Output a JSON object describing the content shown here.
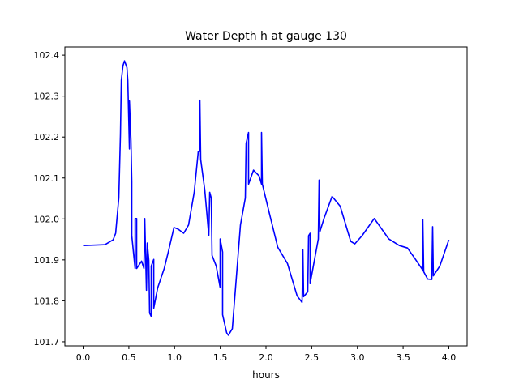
{
  "chart_data": {
    "type": "line",
    "title": "Water Depth h at gauge 130",
    "xlabel": "hours",
    "ylabel": "",
    "xlim": [
      -0.2,
      4.2
    ],
    "ylim": [
      101.69,
      102.42
    ],
    "xticks": [
      0.0,
      0.5,
      1.0,
      1.5,
      2.0,
      2.5,
      3.0,
      3.5,
      4.0
    ],
    "xtick_labels": [
      "0.0",
      "0.5",
      "1.0",
      "1.5",
      "2.0",
      "2.5",
      "3.0",
      "3.5",
      "4.0"
    ],
    "yticks": [
      101.7,
      101.8,
      101.9,
      102.0,
      102.1,
      102.2,
      102.3,
      102.4
    ],
    "ytick_labels": [
      "101.7",
      "101.8",
      "101.9",
      "102.0",
      "102.1",
      "102.2",
      "102.3",
      "102.4"
    ],
    "grid": false,
    "series": [
      {
        "name": "h",
        "color": "#0000ff",
        "points": [
          [
            0.0,
            101.935
          ],
          [
            0.239,
            101.937
          ],
          [
            0.328,
            101.949
          ],
          [
            0.355,
            101.965
          ],
          [
            0.39,
            102.051
          ],
          [
            0.408,
            102.205
          ],
          [
            0.417,
            102.338
          ],
          [
            0.435,
            102.374
          ],
          [
            0.452,
            102.386
          ],
          [
            0.479,
            102.37
          ],
          [
            0.488,
            102.338
          ],
          [
            0.506,
            102.171
          ],
          [
            0.506,
            102.288
          ],
          [
            0.523,
            102.191
          ],
          [
            0.532,
            102.091
          ],
          [
            0.532,
            101.959
          ],
          [
            0.568,
            101.879
          ],
          [
            0.568,
            102.001
          ],
          [
            0.585,
            102.001
          ],
          [
            0.585,
            101.879
          ],
          [
            0.639,
            101.897
          ],
          [
            0.665,
            101.879
          ],
          [
            0.674,
            102.001
          ],
          [
            0.692,
            101.826
          ],
          [
            0.701,
            101.941
          ],
          [
            0.718,
            101.899
          ],
          [
            0.727,
            101.77
          ],
          [
            0.745,
            101.762
          ],
          [
            0.745,
            101.885
          ],
          [
            0.772,
            101.901
          ],
          [
            0.772,
            101.782
          ],
          [
            0.816,
            101.832
          ],
          [
            0.887,
            101.879
          ],
          [
            0.931,
            101.919
          ],
          [
            0.993,
            101.979
          ],
          [
            1.038,
            101.975
          ],
          [
            1.1,
            101.965
          ],
          [
            1.153,
            101.985
          ],
          [
            1.215,
            102.065
          ],
          [
            1.259,
            102.165
          ],
          [
            1.277,
            102.165
          ],
          [
            1.277,
            102.29
          ],
          [
            1.286,
            102.145
          ],
          [
            1.33,
            102.071
          ],
          [
            1.375,
            101.959
          ],
          [
            1.384,
            102.065
          ],
          [
            1.401,
            102.051
          ],
          [
            1.41,
            101.911
          ],
          [
            1.455,
            101.885
          ],
          [
            1.499,
            101.832
          ],
          [
            1.499,
            101.951
          ],
          [
            1.525,
            101.919
          ],
          [
            1.525,
            101.766
          ],
          [
            1.57,
            101.722
          ],
          [
            1.588,
            101.716
          ],
          [
            1.632,
            101.732
          ],
          [
            1.721,
            101.985
          ],
          [
            1.774,
            102.051
          ],
          [
            1.783,
            102.185
          ],
          [
            1.809,
            102.211
          ],
          [
            1.809,
            102.085
          ],
          [
            1.863,
            102.119
          ],
          [
            1.925,
            102.105
          ],
          [
            1.951,
            102.085
          ],
          [
            1.951,
            102.211
          ],
          [
            1.96,
            102.085
          ],
          [
            2.04,
            102.011
          ],
          [
            2.129,
            101.931
          ],
          [
            2.235,
            101.891
          ],
          [
            2.341,
            101.812
          ],
          [
            2.395,
            101.796
          ],
          [
            2.404,
            101.925
          ],
          [
            2.412,
            101.81
          ],
          [
            2.457,
            101.822
          ],
          [
            2.466,
            101.959
          ],
          [
            2.483,
            101.965
          ],
          [
            2.483,
            101.842
          ],
          [
            2.572,
            101.951
          ],
          [
            2.581,
            102.095
          ],
          [
            2.59,
            101.969
          ],
          [
            2.634,
            102.001
          ],
          [
            2.723,
            102.055
          ],
          [
            2.812,
            102.031
          ],
          [
            2.927,
            101.945
          ],
          [
            2.971,
            101.939
          ],
          [
            3.051,
            101.959
          ],
          [
            3.184,
            102.001
          ],
          [
            3.344,
            101.951
          ],
          [
            3.459,
            101.935
          ],
          [
            3.548,
            101.929
          ],
          [
            3.636,
            101.901
          ],
          [
            3.716,
            101.875
          ],
          [
            3.716,
            101.999
          ],
          [
            3.725,
            101.871
          ],
          [
            3.769,
            101.853
          ],
          [
            3.814,
            101.852
          ],
          [
            3.823,
            101.981
          ],
          [
            3.831,
            101.861
          ],
          [
            3.902,
            101.885
          ],
          [
            4.0,
            101.949
          ]
        ]
      }
    ]
  }
}
